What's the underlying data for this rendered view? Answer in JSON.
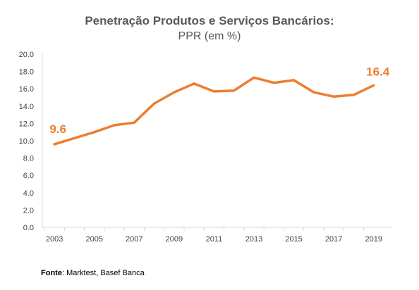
{
  "chart_data": {
    "type": "line",
    "title": "Penetração Produtos e Serviços Bancários:",
    "subtitle": "PPR (em %)",
    "xlabel": "",
    "ylabel": "",
    "x": [
      2003,
      2004,
      2005,
      2006,
      2007,
      2008,
      2009,
      2010,
      2011,
      2012,
      2013,
      2014,
      2015,
      2016,
      2017,
      2018,
      2019
    ],
    "x_tick_labels": [
      "2003",
      "2005",
      "2007",
      "2009",
      "2011",
      "2013",
      "2015",
      "2017",
      "2019"
    ],
    "y_tick_labels": [
      "0.0",
      "2.0",
      "4.0",
      "6.0",
      "8.0",
      "10.0",
      "12.0",
      "14.0",
      "16.0",
      "18.0",
      "20.0"
    ],
    "ylim": [
      0,
      20
    ],
    "grid": false,
    "series": [
      {
        "values": [
          9.6,
          10.3,
          11.0,
          11.8,
          12.1,
          14.3,
          15.6,
          16.6,
          15.7,
          15.8,
          17.3,
          16.7,
          17.0,
          15.6,
          15.1,
          15.3,
          16.4
        ],
        "color": "#ED7D31"
      }
    ],
    "annotations": [
      {
        "x": 2003,
        "text": "9.6"
      },
      {
        "x": 2019,
        "text": "16.4"
      }
    ]
  },
  "source": {
    "label": "Fonte",
    "text": ": Marktest, Basef Banca"
  }
}
